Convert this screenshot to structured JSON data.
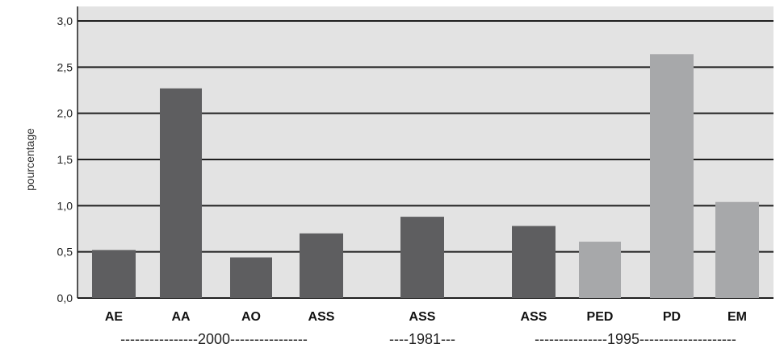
{
  "chart_data": {
    "type": "bar",
    "ylabel": "pourcentage",
    "ylim": [
      0,
      3.0
    ],
    "yticks": [
      "0,0",
      "0,5",
      "1,0",
      "1,5",
      "2,0",
      "2,5",
      "3,0"
    ],
    "grid": true,
    "categories": [
      "AE",
      "AA",
      "AO",
      "ASS",
      "ASS",
      "ASS",
      "PED",
      "PD",
      "EM"
    ],
    "values": [
      0.52,
      2.27,
      0.44,
      0.7,
      0.88,
      0.78,
      0.61,
      2.64,
      1.04
    ],
    "bar_colors": [
      "#5e5e60",
      "#5e5e60",
      "#5e5e60",
      "#5e5e60",
      "#5e5e60",
      "#5e5e60",
      "#a7a8aa",
      "#a7a8aa",
      "#a7a8aa"
    ],
    "groups": [
      {
        "label": "----------------2000----------------",
        "count": 4
      },
      {
        "label": "----1981---",
        "count": 1
      },
      {
        "label": "---------------1995--------------------",
        "count": 4
      }
    ]
  },
  "colors": {
    "plot_bg": "#e3e3e3",
    "gridline": "#1f1f1f",
    "dark_bar": "#5e5e60",
    "light_bar": "#a7a8aa"
  }
}
